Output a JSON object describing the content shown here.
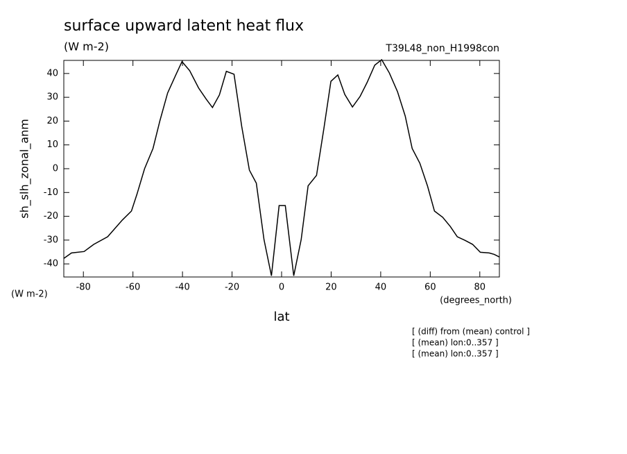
{
  "chart_data": {
    "type": "line",
    "title": "surface upward latent heat flux",
    "subtitle": "(W m-2)",
    "run_label": "T39L48_non_H1998con",
    "y_label": "sh_slh_zonal_anm",
    "y_units": "(W m-2)",
    "x_label": "lat",
    "x_units": "(degrees_north)",
    "notes": [
      "[ (diff) from (mean) control ]",
      "[ (mean) lon:0..357 ]",
      "[ (mean) lon:0..357 ]"
    ],
    "x": [
      -87.9,
      -84.8,
      -79.7,
      -75.8,
      -70.2,
      -64.3,
      -60.6,
      -58.4,
      -55.3,
      -51.9,
      -49.1,
      -46.0,
      -42.7,
      -40.2,
      -37.1,
      -33.5,
      -30.4,
      -27.9,
      -25.1,
      -22.3,
      -19.2,
      -16.1,
      -13.0,
      -10.2,
      -7.1,
      -4.1,
      -1.0,
      1.5,
      4.9,
      7.9,
      10.7,
      14.1,
      17.1,
      19.9,
      22.7,
      25.5,
      28.6,
      31.7,
      34.5,
      37.6,
      40.4,
      43.5,
      46.8,
      49.9,
      52.7,
      55.8,
      58.9,
      61.7,
      65.0,
      68.1,
      70.9,
      74.0,
      77.1,
      80.2,
      83.8,
      85.8,
      87.9
    ],
    "series": [
      {
        "color": "#000000",
        "values": [
          -37.7,
          -35.4,
          -34.8,
          -31.8,
          -28.6,
          -21.6,
          -17.8,
          -10.8,
          0.0,
          8.5,
          20.2,
          31.8,
          39.4,
          45.0,
          41.2,
          33.9,
          29.2,
          25.7,
          31.0,
          40.9,
          39.7,
          17.8,
          -0.6,
          -6.1,
          -29.8,
          -45.0,
          -15.5,
          -15.5,
          -45.0,
          -29.8,
          -7.2,
          -2.8,
          17.1,
          36.7,
          39.4,
          31.2,
          25.9,
          30.4,
          36.2,
          43.5,
          45.8,
          40.2,
          32.3,
          22.1,
          8.5,
          2.3,
          -7.3,
          -17.8,
          -20.4,
          -24.3,
          -28.6,
          -30.1,
          -31.8,
          -35.1,
          -35.4,
          -36.0,
          -37.1
        ]
      }
    ],
    "xlim": [
      -87.9,
      87.9
    ],
    "xticks": [
      -80,
      -60,
      -40,
      -20,
      0,
      20,
      40,
      60,
      80
    ],
    "ylim": [
      -45.5,
      45.5
    ],
    "yticks": [
      -40,
      -30,
      -20,
      -10,
      0,
      10,
      20,
      30,
      40
    ]
  }
}
